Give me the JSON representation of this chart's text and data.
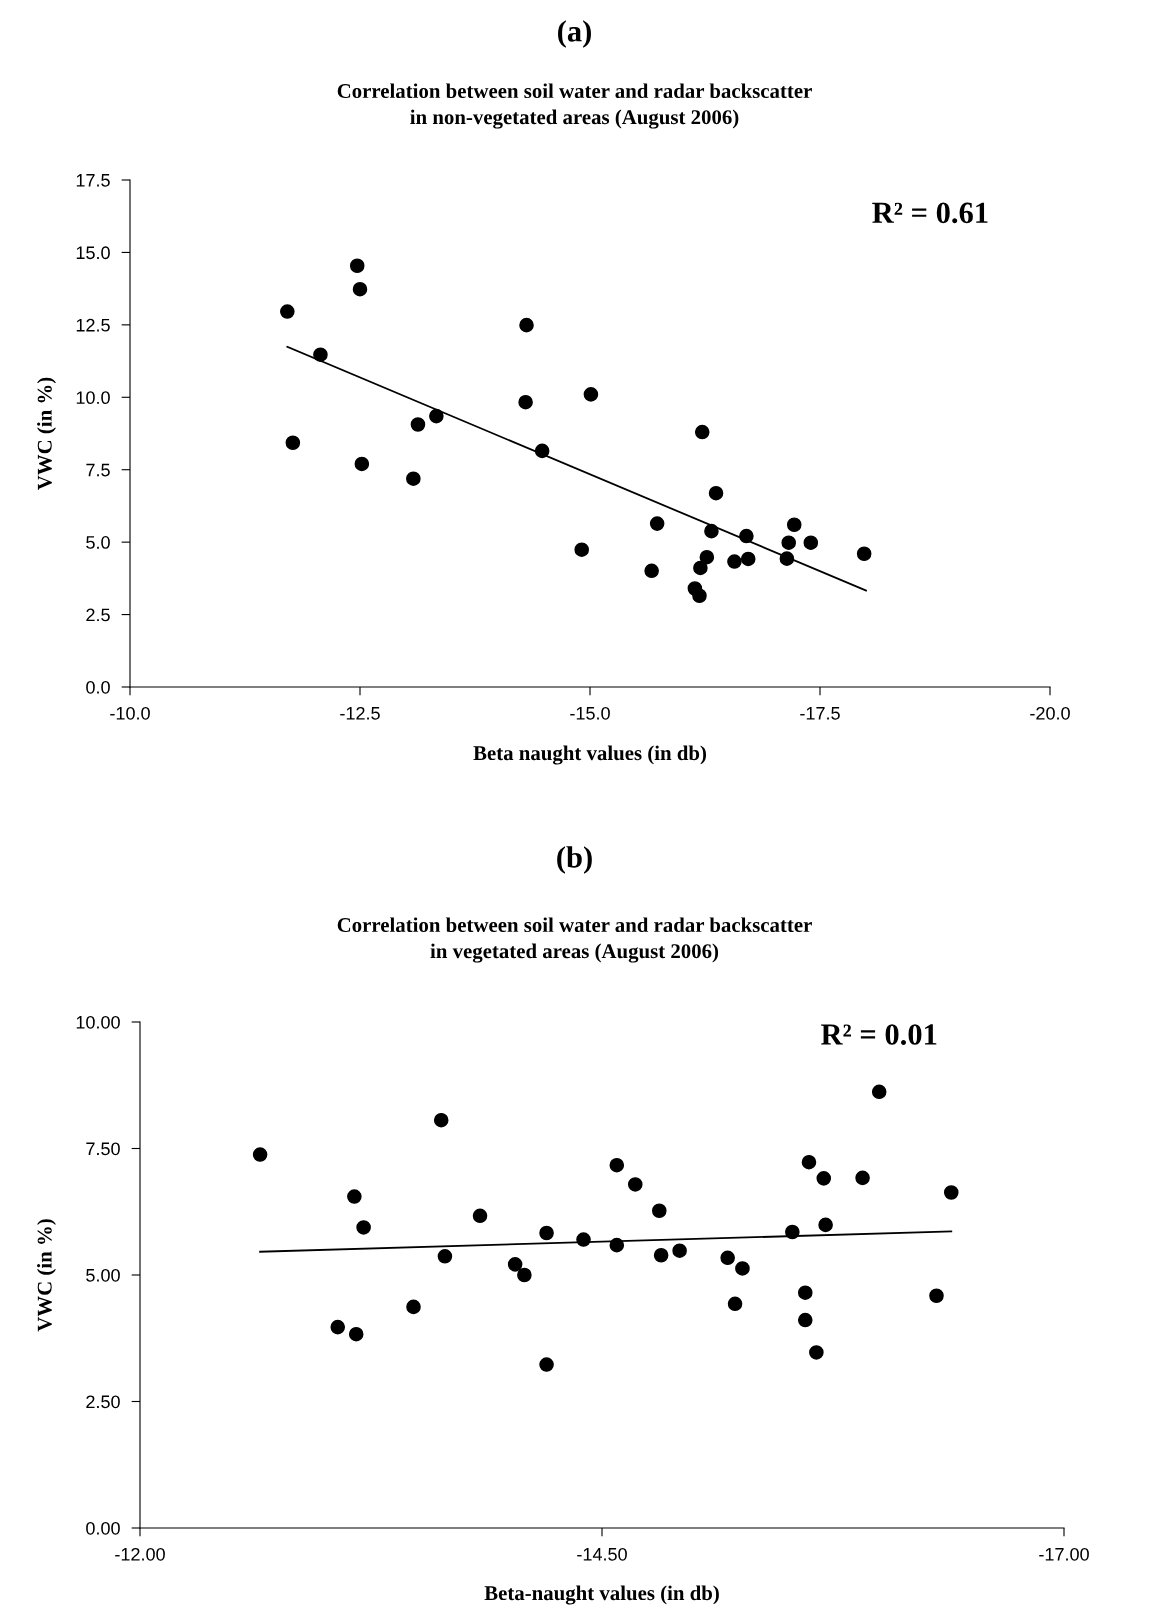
{
  "chart_data": [
    {
      "type": "scatter",
      "title": "(a)",
      "subtitle": "Correlation between soil water and radar backscatter\nin non-vegetated areas (August 2006)",
      "xlabel": "Beta naught values (in db)",
      "ylabel": "VWC (in %)",
      "annotations": [
        "R² = 0.61"
      ],
      "xlim": [
        -10.0,
        -20.0
      ],
      "xticks": [
        {
          "value": -10,
          "label": "-10.0"
        },
        -12.5,
        {
          "value": -15,
          "label": "-15.0"
        },
        -17.5,
        {
          "value": -20,
          "label": "-20.0"
        }
      ],
      "ylim": [
        0.0,
        17.5
      ],
      "yticks": [
        {
          "value": 0,
          "label": "0.0"
        },
        2.5,
        {
          "value": 5,
          "label": "5.0"
        },
        7.5,
        {
          "value": 10,
          "label": "10.0"
        },
        12.5,
        {
          "value": 15,
          "label": "15.0"
        },
        17.5
      ],
      "grid": false,
      "legend": false,
      "marker": "circle",
      "series": [
        {
          "color": "#000000",
          "x": [
            -11.71,
            -11.77,
            -12.07,
            -12.47,
            -12.5,
            -12.52,
            -13.08,
            -13.13,
            -13.33,
            -14.3,
            -14.31,
            -14.48,
            -14.91,
            -15.01,
            -16.22,
            -16.37,
            -15.73,
            -15.67,
            -16.32,
            -16.27,
            -16.2,
            -16.14,
            -16.19,
            -16.57,
            -16.7,
            -16.72,
            -17.14,
            -17.16,
            -17.22,
            -17.4,
            -17.98
          ],
          "values": [
            12.96,
            8.43,
            11.47,
            14.54,
            13.73,
            7.7,
            7.19,
            9.06,
            9.35,
            9.83,
            12.49,
            8.15,
            4.74,
            10.1,
            8.8,
            6.69,
            5.64,
            4.01,
            5.38,
            4.48,
            4.11,
            3.4,
            3.15,
            4.33,
            5.21,
            4.42,
            4.43,
            4.98,
            5.6,
            4.98,
            4.6
          ]
        },
        {
          "type": "line",
          "color": "#000000",
          "marker": "none",
          "x": [
            -11.71,
            -18.0
          ],
          "values": [
            11.74,
            3.33
          ]
        }
      ]
    },
    {
      "type": "scatter",
      "title": "(b)",
      "subtitle": "Correlation between soil water and radar backscatter\nin vegetated areas (August 2006)",
      "xlabel": "Beta-naught values (in db)",
      "ylabel": "VWC (in %)",
      "annotations": [
        "R² = 0.01"
      ],
      "xlim": [
        -12.0,
        -17.0
      ],
      "xticks": [
        {
          "value": -12.0,
          "label": "-12.00"
        },
        {
          "value": -14.5,
          "label": "-14.50"
        },
        {
          "value": -17.0,
          "label": "-17.00"
        }
      ],
      "ylim": [
        0.0,
        10.0
      ],
      "yticks": [
        {
          "value": 0.0,
          "label": "0.00"
        },
        {
          "value": 2.5,
          "label": "2.50"
        },
        {
          "value": 5.0,
          "label": "5.00"
        },
        {
          "value": 7.5,
          "label": "7.50"
        },
        {
          "value": 10.0,
          "label": "10.00"
        }
      ],
      "grid": false,
      "legend": false,
      "marker": "circle",
      "series": [
        {
          "color": "#000000",
          "x": [
            -12.65,
            -13.16,
            -13.21,
            -13.07,
            -13.17,
            -13.48,
            -13.63,
            -13.65,
            -13.84,
            -14.03,
            -14.08,
            -14.2,
            -14.2,
            -14.4,
            -14.58,
            -14.58,
            -14.68,
            -14.81,
            -14.82,
            -14.92,
            -15.18,
            -15.26,
            -15.22,
            -15.53,
            -15.62,
            -15.7,
            -15.71,
            -15.6,
            -15.6,
            -15.66,
            -15.91,
            -16.0,
            -16.31,
            -16.39
          ],
          "values": [
            7.38,
            6.55,
            5.94,
            3.97,
            3.83,
            4.37,
            8.06,
            5.37,
            6.17,
            5.21,
            5.0,
            5.83,
            3.23,
            5.7,
            7.17,
            5.59,
            6.79,
            6.27,
            5.39,
            5.48,
            5.34,
            5.13,
            4.43,
            5.85,
            7.23,
            6.91,
            5.99,
            4.65,
            4.11,
            3.47,
            6.92,
            8.62,
            4.59,
            6.63
          ]
        },
        {
          "type": "line",
          "color": "#000000",
          "marker": "none",
          "x": [
            -12.65,
            -16.39
          ],
          "values": [
            5.46,
            5.86
          ]
        }
      ]
    }
  ]
}
